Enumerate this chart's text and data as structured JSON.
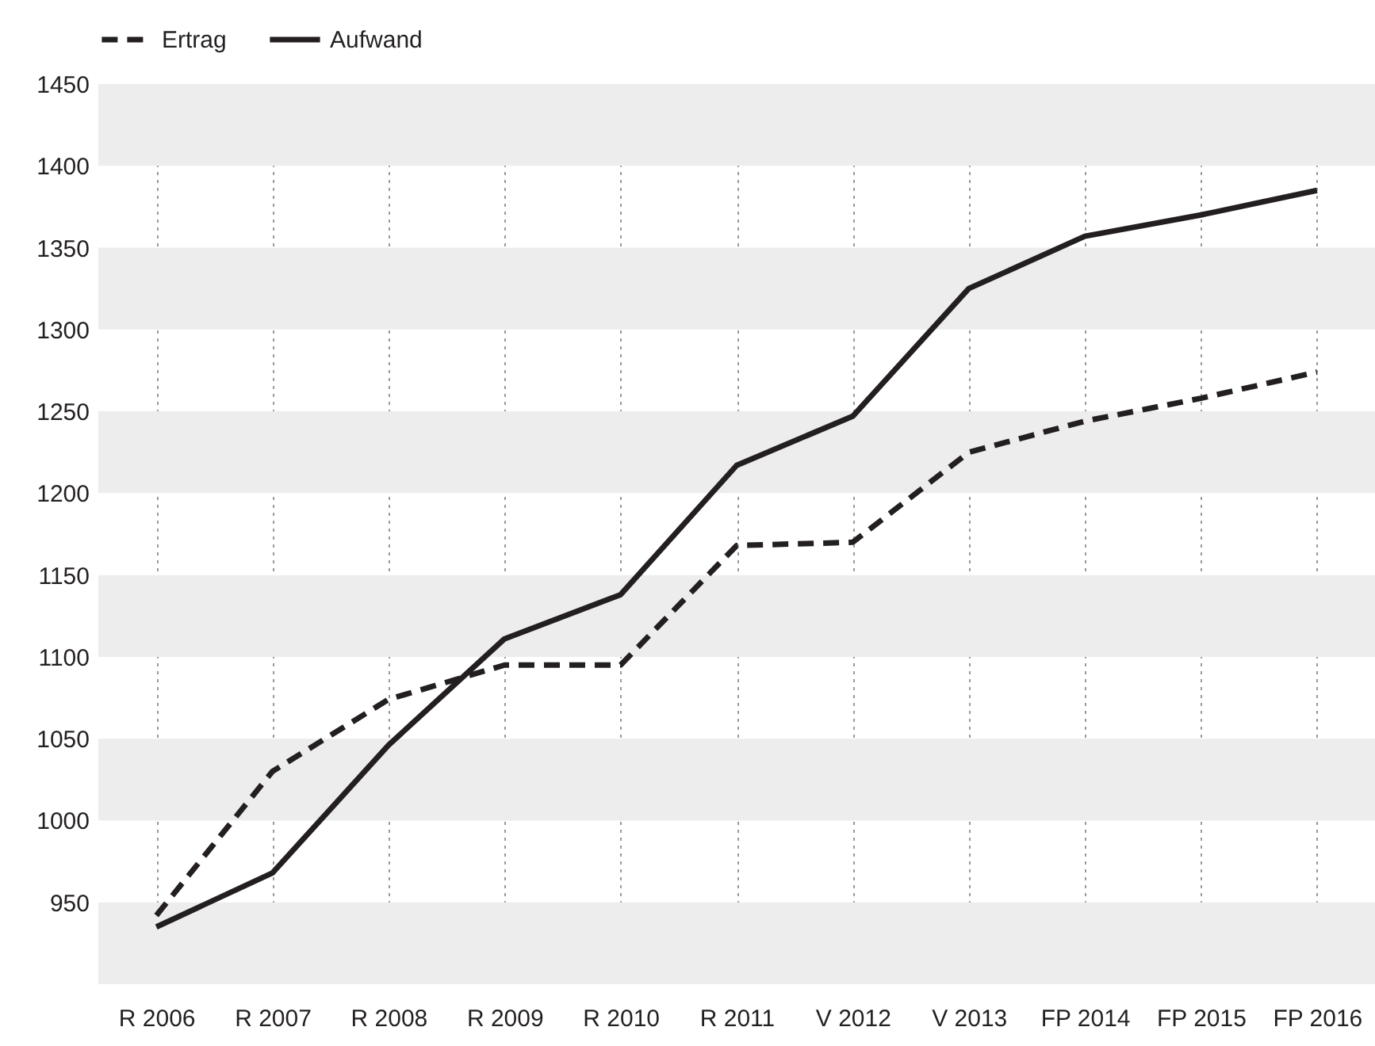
{
  "chart_data": {
    "type": "line",
    "categories": [
      "R 2006",
      "R 2007",
      "R 2008",
      "R 2009",
      "R 2010",
      "R 2011",
      "V 2012",
      "V 2013",
      "FP 2014",
      "FP 2015",
      "FP 2016"
    ],
    "series": [
      {
        "name": "Ertrag",
        "color": "#231f20",
        "line_style": "dashed",
        "values": [
          942,
          1030,
          1074,
          1095,
          1095,
          1168,
          1170,
          1225,
          1244,
          1258,
          1274
        ]
      },
      {
        "name": "Aufwand",
        "color": "#231f20",
        "line_style": "solid",
        "values": [
          935,
          968,
          1046,
          1111,
          1138,
          1217,
          1247,
          1325,
          1357,
          1370,
          1385
        ]
      }
    ],
    "ylim": [
      900,
      1450
    ],
    "yticks": [
      950,
      1000,
      1050,
      1100,
      1150,
      1200,
      1250,
      1300,
      1350,
      1400,
      1450
    ],
    "bands": [
      {
        "axis": "y",
        "from": 1400,
        "to": 1450,
        "color": "#ededed"
      },
      {
        "axis": "y",
        "from": 1300,
        "to": 1350,
        "color": "#ededed"
      },
      {
        "axis": "y",
        "from": 1200,
        "to": 1250,
        "color": "#ededed"
      },
      {
        "axis": "y",
        "from": 1100,
        "to": 1150,
        "color": "#ededed"
      },
      {
        "axis": "y",
        "from": 1000,
        "to": 1050,
        "color": "#ededed"
      },
      {
        "axis": "y",
        "from": 900,
        "to": 950,
        "color": "#ededed"
      }
    ],
    "grid": "x",
    "legend": "top left",
    "marker": "none"
  }
}
